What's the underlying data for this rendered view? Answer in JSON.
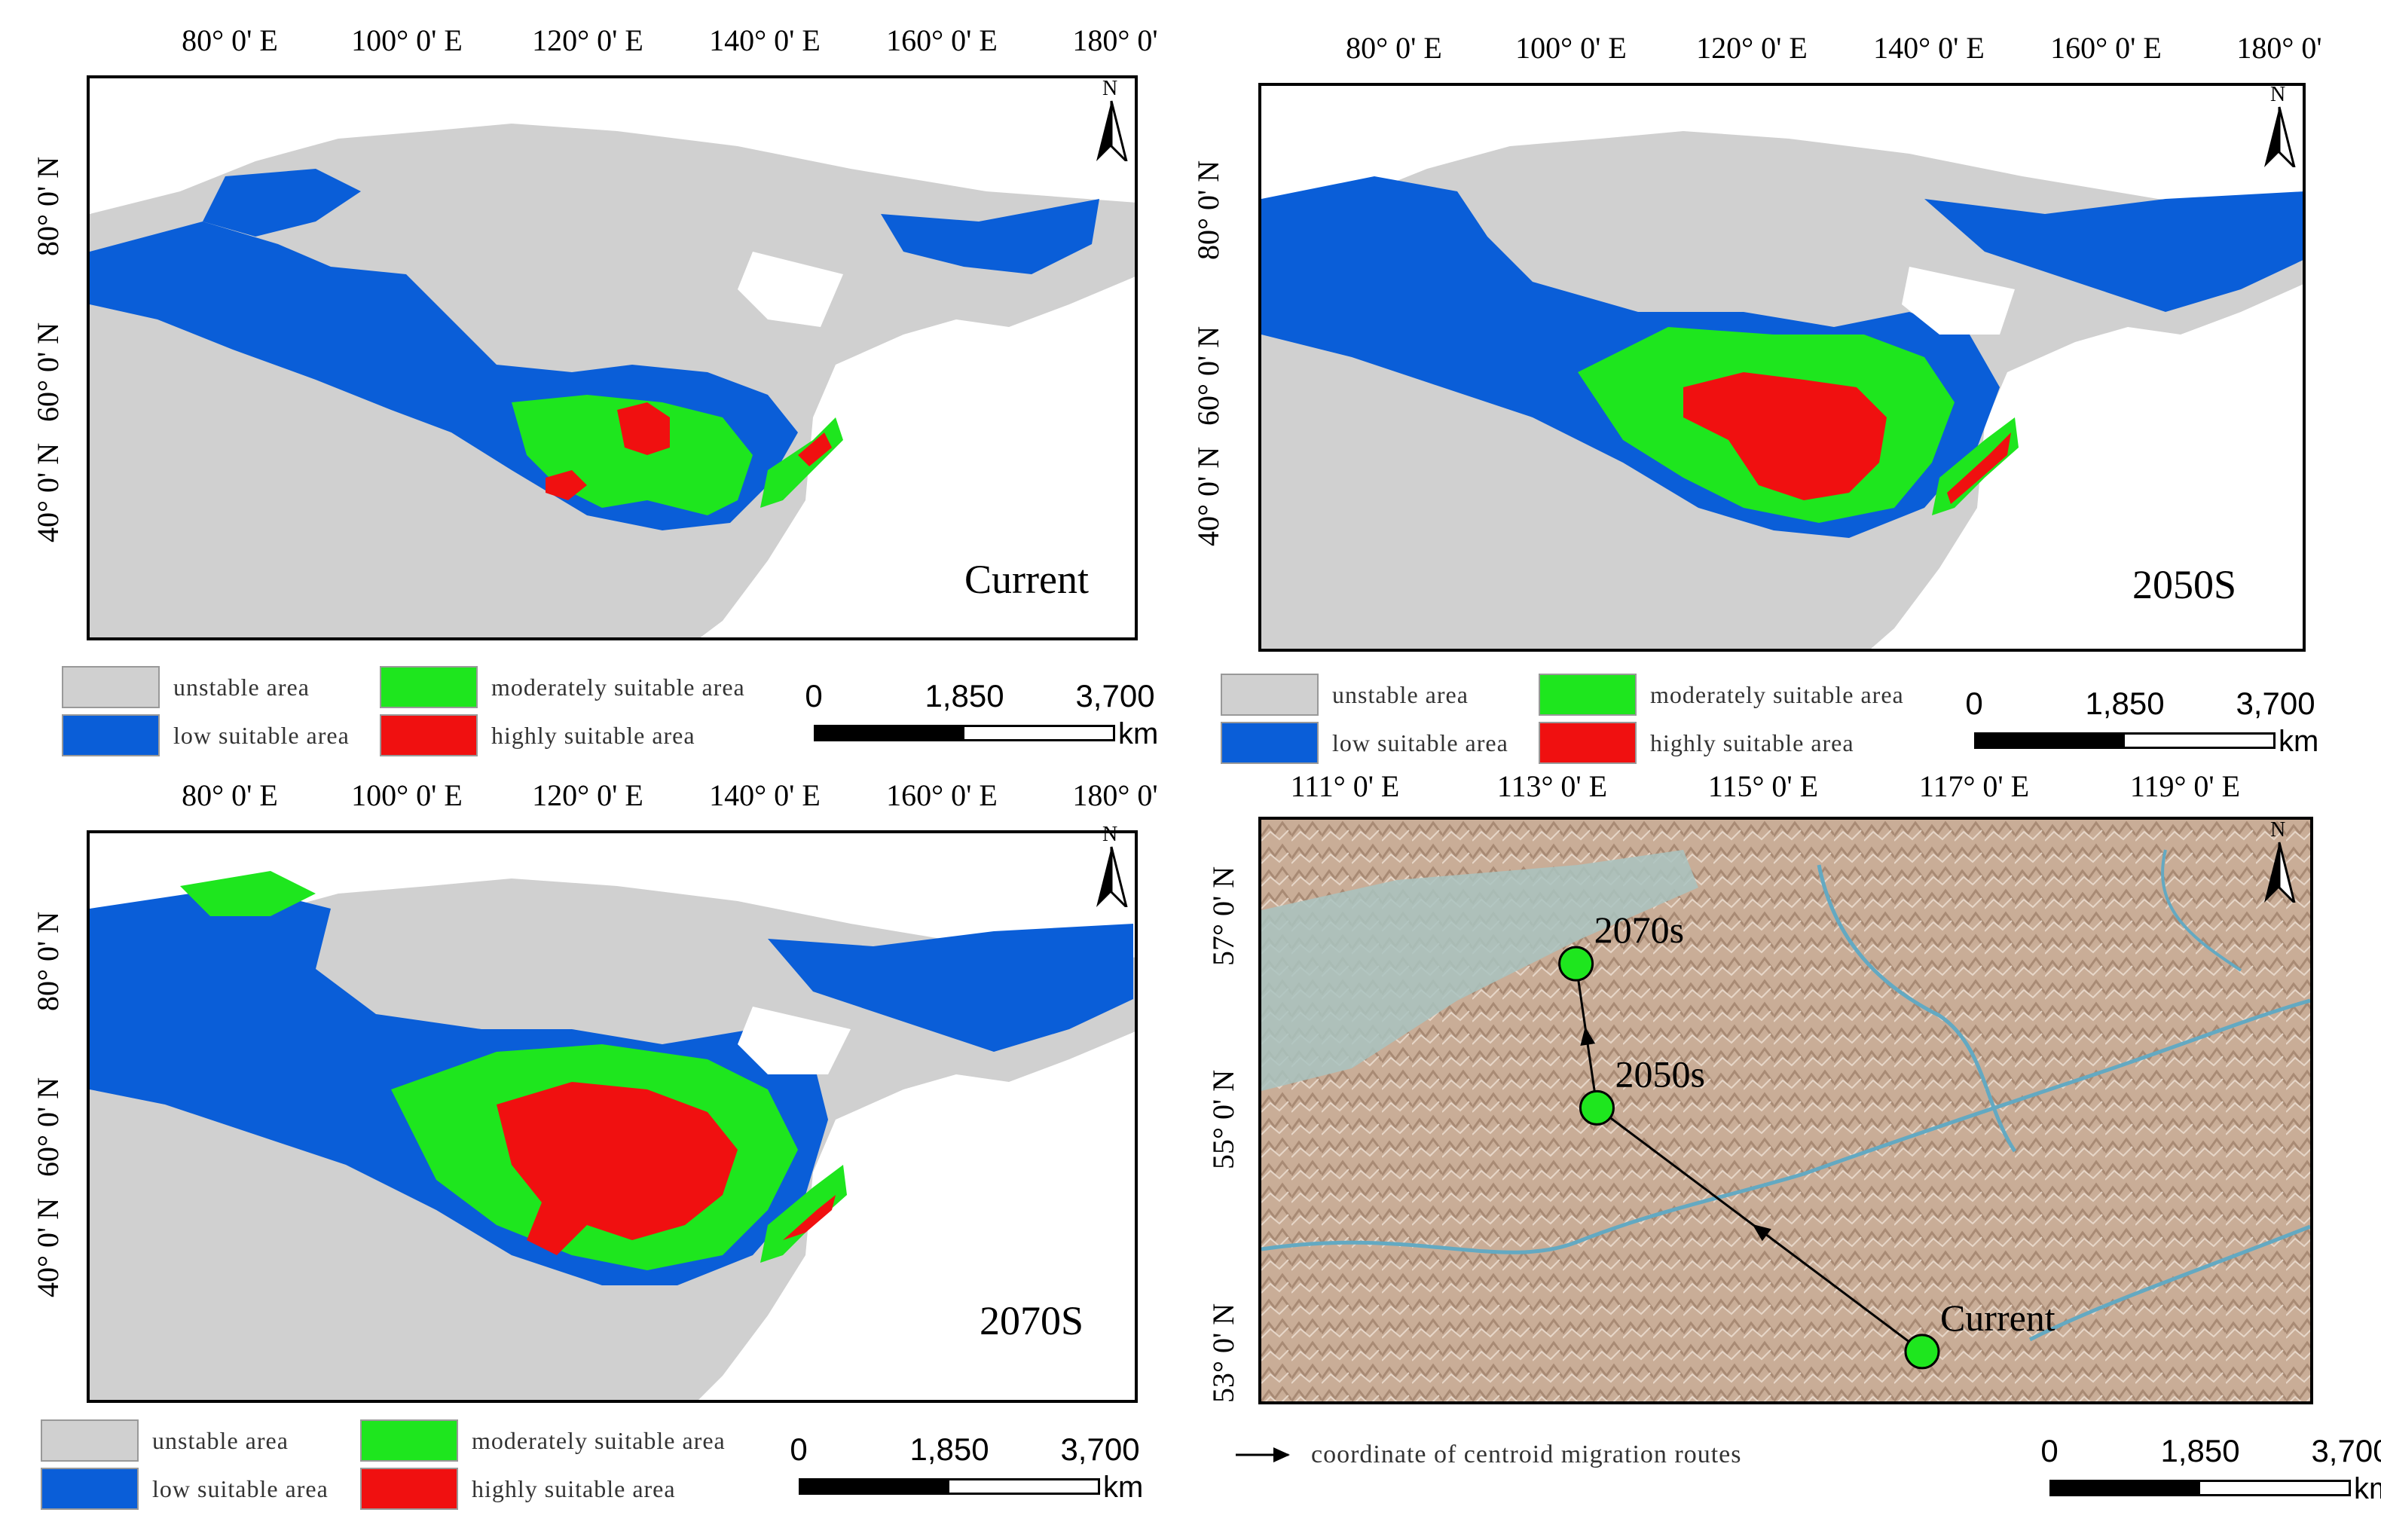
{
  "global_map_ticks": {
    "top": [
      "80° 0' E",
      "100° 0' E",
      "120° 0' E",
      "140° 0' E",
      "160° 0' E",
      "180° 0'"
    ],
    "left": [
      "80° 0' N",
      "60° 0' N",
      "40° 0' N"
    ]
  },
  "panels": [
    {
      "label": "Current"
    },
    {
      "label": "2050S"
    },
    {
      "label": "2070S"
    }
  ],
  "legend": {
    "unstable": "unstable area",
    "low": "low suitable area",
    "moderate": "moderately suitable area",
    "high": "highly suitable area"
  },
  "colors": {
    "unstable": "#d0d0d0",
    "low": "#0a5ed8",
    "moderate": "#1ee61e",
    "high": "#f01010"
  },
  "scale_bar": {
    "labels": [
      "0",
      "1,850",
      "3,700"
    ],
    "unit": "km"
  },
  "north_label": "N",
  "route_map": {
    "ticks_top": [
      "111° 0' E",
      "113° 0' E",
      "115° 0' E",
      "117° 0' E",
      "119° 0' E"
    ],
    "ticks_left": [
      "57° 0' N",
      "55° 0' N",
      "53° 0' N"
    ],
    "points": [
      {
        "label": "2070s",
        "lon": 112.8,
        "lat": 56.3
      },
      {
        "label": "2050s",
        "lon": 113.0,
        "lat": 55.0
      },
      {
        "label": "Current",
        "lon": 116.1,
        "lat": 52.8
      }
    ],
    "legend": "coordinate of centroid migration routes"
  }
}
